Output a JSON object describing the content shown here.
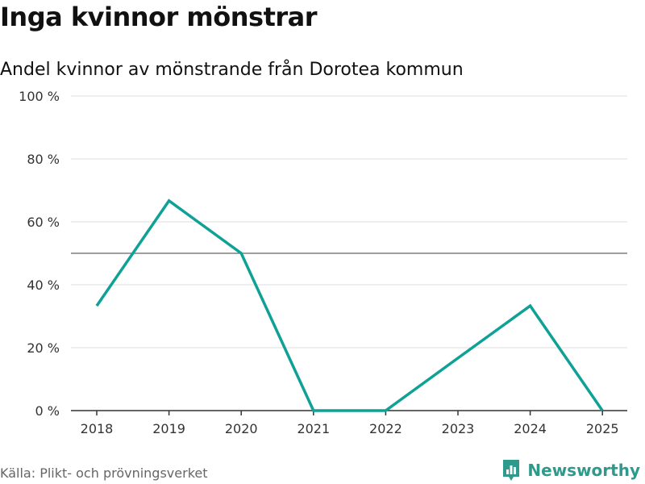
{
  "header": {
    "title": "Inga kvinnor mönstrar",
    "subtitle": "Andel kvinnor av mönstrande från Dorotea kommun"
  },
  "footer": {
    "source": "Källa: Plikt- och prövningsverket",
    "brand": "Newsworthy"
  },
  "icons": {
    "brand_icon": "bar-chart-speech-bubble-icon"
  },
  "colors": {
    "line": "#0fa196",
    "grid": "#dddddd",
    "reference_line": "#666666",
    "axis": "#333333",
    "brand": "#2e9a8c"
  },
  "chart_data": {
    "type": "line",
    "title": "Inga kvinnor mönstrar",
    "subtitle": "Andel kvinnor av mönstrande från Dorotea kommun",
    "xlabel": "",
    "ylabel": "",
    "categories": [
      "2018",
      "2019",
      "2020",
      "2021",
      "2022",
      "2023",
      "2024",
      "2025"
    ],
    "series": [
      {
        "name": "Andel kvinnor",
        "values": [
          33.3,
          66.7,
          50,
          0,
          0,
          16.7,
          33.3,
          0
        ]
      }
    ],
    "ylim": [
      0,
      100
    ],
    "yticks": [
      0,
      20,
      40,
      60,
      80,
      100
    ],
    "ytick_labels": [
      "0 %",
      "20 %",
      "40 %",
      "60 %",
      "80 %",
      "100 %"
    ],
    "reference_line": 50,
    "grid": true,
    "legend": "none"
  }
}
